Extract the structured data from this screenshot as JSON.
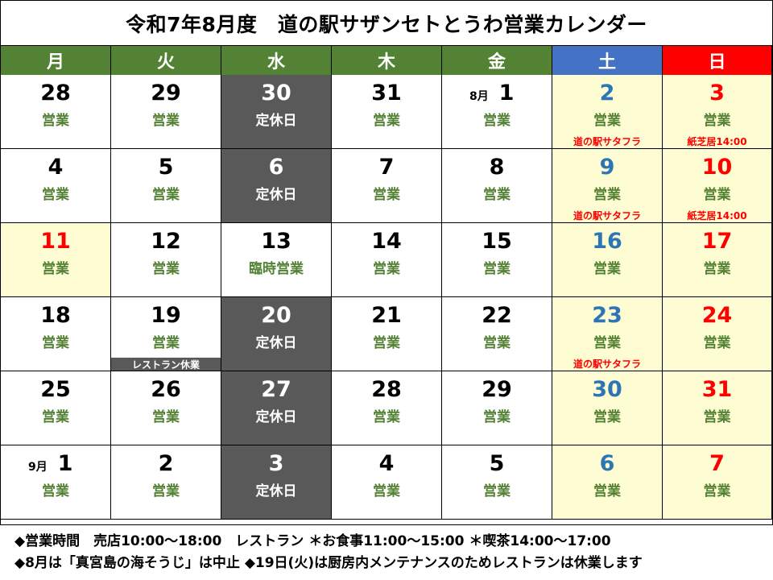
{
  "title": "令和7年8月度　道の駅サザンセトとうわ営業カレンダー",
  "colors": {
    "header_green": "#548235",
    "header_blue": "#4472c4",
    "header_red": "#ff0000",
    "closed_gray": "#595959",
    "weekend_yellow": "#fdfcd2",
    "open_green": "#548235",
    "saturday_blue": "#2e75b6",
    "sunday_red": "#ff0000"
  },
  "weekdays": [
    "月",
    "火",
    "水",
    "木",
    "金",
    "土",
    "日"
  ],
  "weeks": [
    [
      {
        "day": "28",
        "status": "営業",
        "type": "open"
      },
      {
        "day": "29",
        "status": "営業",
        "type": "open"
      },
      {
        "day": "30",
        "status": "定休日",
        "type": "closed"
      },
      {
        "day": "31",
        "status": "営業",
        "type": "open"
      },
      {
        "day": "1",
        "month": "8月",
        "status": "営業",
        "type": "open"
      },
      {
        "day": "2",
        "status": "営業",
        "type": "weekend",
        "day_color": "blue",
        "event": "道の駅サタフラ"
      },
      {
        "day": "3",
        "status": "営業",
        "type": "weekend",
        "day_color": "red",
        "event": "紙芝居14:00"
      }
    ],
    [
      {
        "day": "4",
        "status": "営業",
        "type": "open"
      },
      {
        "day": "5",
        "status": "営業",
        "type": "open"
      },
      {
        "day": "6",
        "status": "定休日",
        "type": "closed"
      },
      {
        "day": "7",
        "status": "営業",
        "type": "open"
      },
      {
        "day": "8",
        "status": "営業",
        "type": "open"
      },
      {
        "day": "9",
        "status": "営業",
        "type": "weekend",
        "day_color": "blue",
        "event": "道の駅サタフラ"
      },
      {
        "day": "10",
        "status": "営業",
        "type": "weekend",
        "day_color": "red",
        "event": "紙芝居14:00"
      }
    ],
    [
      {
        "day": "11",
        "status": "営業",
        "type": "weekend",
        "day_color": "red"
      },
      {
        "day": "12",
        "status": "営業",
        "type": "open"
      },
      {
        "day": "13",
        "status": "臨時営業",
        "type": "open"
      },
      {
        "day": "14",
        "status": "営業",
        "type": "open"
      },
      {
        "day": "15",
        "status": "営業",
        "type": "open"
      },
      {
        "day": "16",
        "status": "営業",
        "type": "weekend",
        "day_color": "blue"
      },
      {
        "day": "17",
        "status": "営業",
        "type": "weekend",
        "day_color": "red"
      }
    ],
    [
      {
        "day": "18",
        "status": "営業",
        "type": "open"
      },
      {
        "day": "19",
        "status": "営業",
        "type": "open",
        "band": "レストラン休業"
      },
      {
        "day": "20",
        "status": "定休日",
        "type": "closed"
      },
      {
        "day": "21",
        "status": "営業",
        "type": "open"
      },
      {
        "day": "22",
        "status": "営業",
        "type": "open"
      },
      {
        "day": "23",
        "status": "営業",
        "type": "weekend",
        "day_color": "blue",
        "event": "道の駅サタフラ"
      },
      {
        "day": "24",
        "status": "営業",
        "type": "weekend",
        "day_color": "red"
      }
    ],
    [
      {
        "day": "25",
        "status": "営業",
        "type": "open"
      },
      {
        "day": "26",
        "status": "営業",
        "type": "open"
      },
      {
        "day": "27",
        "status": "定休日",
        "type": "closed"
      },
      {
        "day": "28",
        "status": "営業",
        "type": "open"
      },
      {
        "day": "29",
        "status": "営業",
        "type": "open"
      },
      {
        "day": "30",
        "status": "営業",
        "type": "weekend",
        "day_color": "blue"
      },
      {
        "day": "31",
        "status": "営業",
        "type": "weekend",
        "day_color": "red"
      }
    ],
    [
      {
        "day": "1",
        "month": "9月",
        "status": "営業",
        "type": "open"
      },
      {
        "day": "2",
        "status": "営業",
        "type": "open"
      },
      {
        "day": "3",
        "status": "定休日",
        "type": "closed"
      },
      {
        "day": "4",
        "status": "営業",
        "type": "open"
      },
      {
        "day": "5",
        "status": "営業",
        "type": "open"
      },
      {
        "day": "6",
        "status": "営業",
        "type": "weekend",
        "day_color": "blue"
      },
      {
        "day": "7",
        "status": "営業",
        "type": "weekend",
        "day_color": "red"
      }
    ]
  ],
  "notes": {
    "hours": "◆営業時間　売店10:00～18:00　レストラン ＊お食事11:00～15:00 ＊喫茶14:00～17:00",
    "notice": "◆8月は「真宮島の海そうじ」は中止 ◆19日(火)は厨房内メンテナンスのためレストランは休業します"
  }
}
